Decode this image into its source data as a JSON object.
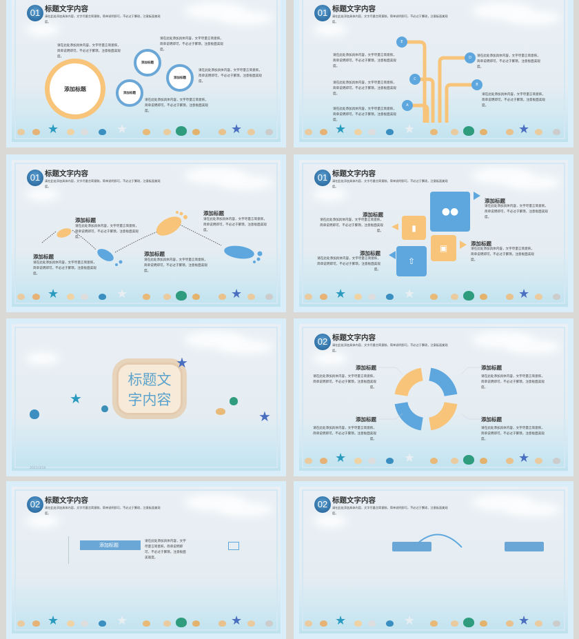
{
  "common": {
    "section_title": "标题文字内容",
    "header_desc": "请在此处添加具体内容，文字尽量言简意赅，简单说明即可，不必过于繁琐，注意板面美观度。",
    "body_text": "请在此处添加具体内容，文字尽量言简意赅，简单说明即可，不必过于繁琐，注意板面美观度。",
    "add_title": "添加标题"
  },
  "colors": {
    "blue": "#5ea7de",
    "orange": "#f7c47a",
    "background": "#dbd9d5",
    "cover_title": "#5ba3cc"
  },
  "slides": [
    {
      "badge": "01",
      "layout": "circles",
      "main_circle": "添加标题",
      "small_circles": [
        "添加标题",
        "添加标题",
        "添加标题"
      ]
    },
    {
      "badge": "01",
      "layout": "tree",
      "nodes": [
        "E",
        "C",
        "A",
        "D",
        "B"
      ]
    },
    {
      "badge": "01",
      "layout": "footprints",
      "labels": [
        "添加标题",
        "添加标题",
        "添加标题",
        "添加标题"
      ]
    },
    {
      "badge": "01",
      "layout": "squares",
      "labels": [
        "添加标题",
        "添加标题",
        "添加标题",
        "添加标题"
      ],
      "icons": [
        "users-icon",
        "folder-icon",
        "inbox-icon",
        "upload-icon"
      ]
    },
    {
      "layout": "cover",
      "title_line1": "标题文",
      "title_line2": "字内容",
      "date": "2021/3/16"
    },
    {
      "badge": "02",
      "layout": "ring",
      "labels": [
        "添加标题",
        "添加标题",
        "添加标题",
        "添加标题"
      ]
    },
    {
      "badge": "02",
      "layout": "bars",
      "bar_label": "添加标题"
    },
    {
      "badge": "02",
      "layout": "arc"
    }
  ]
}
